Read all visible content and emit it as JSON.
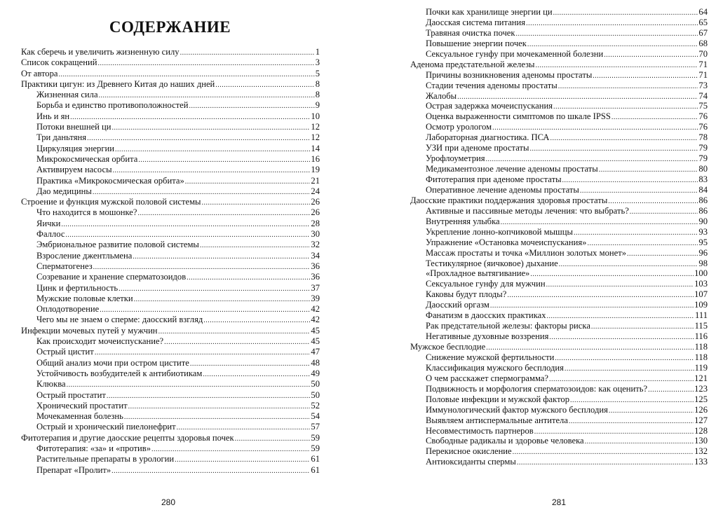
{
  "left_page": {
    "title": "СОДЕРЖАНИЕ",
    "page_number": "280",
    "entries": [
      {
        "level": 0,
        "text": "Как сберечь и увеличить жизненную силу",
        "page": "1"
      },
      {
        "level": 0,
        "text": "Список сокращений",
        "page": "3"
      },
      {
        "level": 0,
        "text": "От автора",
        "page": "5"
      },
      {
        "level": 0,
        "text": "Практики цигун: из Древнего Китая до наших дней",
        "page": "8"
      },
      {
        "level": 1,
        "text": "Жизненная сила",
        "page": "8"
      },
      {
        "level": 1,
        "text": "Борьба и единство противоположностей",
        "page": "9"
      },
      {
        "level": 1,
        "text": "Инь и ян",
        "page": "10"
      },
      {
        "level": 1,
        "text": "Потоки внешней ци",
        "page": "12"
      },
      {
        "level": 1,
        "text": "Три даньтяня",
        "page": "12"
      },
      {
        "level": 1,
        "text": "Циркуляция энергии",
        "page": "14"
      },
      {
        "level": 1,
        "text": "Микрокосмическая  орбита",
        "page": "16"
      },
      {
        "level": 1,
        "text": "Активируем насосы",
        "page": "19"
      },
      {
        "level": 1,
        "text": "Практика «Микрокосмическая орбита»",
        "page": "21"
      },
      {
        "level": 1,
        "text": "Дао медицины",
        "page": "24"
      },
      {
        "level": 0,
        "text": "Строение и функция мужской половой системы",
        "page": "26"
      },
      {
        "level": 1,
        "text": "Что находится в мошонке?",
        "page": "26"
      },
      {
        "level": 1,
        "text": "Яички",
        "page": "28"
      },
      {
        "level": 1,
        "text": "Фаллос",
        "page": "30"
      },
      {
        "level": 1,
        "text": "Эмбриональное развитие половой системы",
        "page": "32"
      },
      {
        "level": 1,
        "text": "Взросление джентльмена",
        "page": "34"
      },
      {
        "level": 1,
        "text": "Сперматогенез",
        "page": "36"
      },
      {
        "level": 1,
        "text": "Созревание и хранение сперматозоидов",
        "page": "36"
      },
      {
        "level": 1,
        "text": "Цинк и фертильность",
        "page": "37"
      },
      {
        "level": 1,
        "text": "Мужские половые клетки",
        "page": "39"
      },
      {
        "level": 1,
        "text": "Оплодотворение",
        "page": "42"
      },
      {
        "level": 1,
        "text": "Чего мы не знаем о сперме:  даосский взгляд",
        "page": "42"
      },
      {
        "level": 0,
        "text": "Инфекции мочевых путей у мужчин",
        "page": "45"
      },
      {
        "level": 1,
        "text": "Как происходит мочеиспускание?",
        "page": "45"
      },
      {
        "level": 1,
        "text": "Острый цистит",
        "page": "47"
      },
      {
        "level": 1,
        "text": "Общий анализ мочи при остром цистите",
        "page": "48"
      },
      {
        "level": 1,
        "text": "Устойчивость возбудителей к антибиотикам",
        "page": "49"
      },
      {
        "level": 1,
        "text": "Клюква",
        "page": "50"
      },
      {
        "level": 1,
        "text": "Острый простатит",
        "page": "50"
      },
      {
        "level": 1,
        "text": "Хронический простатит",
        "page": "52"
      },
      {
        "level": 1,
        "text": "Мочекаменная болезнь",
        "page": "54"
      },
      {
        "level": 1,
        "text": "Острый и хронический  пиелонефрит",
        "page": "57"
      },
      {
        "level": 0,
        "text": "Фитотерапия и другие даосские рецепты здоровья почек",
        "page": "59"
      },
      {
        "level": 1,
        "text": "Фитотерапия: «за» и «против»",
        "page": "59"
      },
      {
        "level": 1,
        "text": "Растительные препараты в урологии",
        "page": "61"
      },
      {
        "level": 1,
        "text": "Препарат «Пролит»",
        "page": "61"
      }
    ]
  },
  "right_page": {
    "page_number": "281",
    "entries": [
      {
        "level": 1,
        "text": "Почки как хранилище  энергии ци",
        "page": "64"
      },
      {
        "level": 1,
        "text": "Даосская система питания",
        "page": "65"
      },
      {
        "level": 1,
        "text": "Травяная очистка почек",
        "page": "67"
      },
      {
        "level": 1,
        "text": "Повышение энергии почек",
        "page": "68"
      },
      {
        "level": 1,
        "text": "Сексуальное гунфу при мочекаменной болезни",
        "page": "70"
      },
      {
        "level": 0,
        "text": "Аденома предстательной железы",
        "page": "71"
      },
      {
        "level": 1,
        "text": "Причины возникновения аденомы простаты",
        "page": "71"
      },
      {
        "level": 1,
        "text": "Стадии течения аденомы простаты",
        "page": "73"
      },
      {
        "level": 1,
        "text": "Жалобы",
        "page": "74"
      },
      {
        "level": 1,
        "text": "Острая задержка  мочеиспускания",
        "page": "75"
      },
      {
        "level": 1,
        "text": "Оценка выраженности симптомов по шкале IPSS",
        "page": "76"
      },
      {
        "level": 1,
        "text": "Осмотр урологом",
        "page": "76"
      },
      {
        "level": 1,
        "text": "Лабораторная диагностика. ПСА",
        "page": "78"
      },
      {
        "level": 1,
        "text": "УЗИ при аденоме простаты",
        "page": "79"
      },
      {
        "level": 1,
        "text": "Урофлоуметрия",
        "page": "79"
      },
      {
        "level": 1,
        "text": "Медикаментозное лечение аденомы простаты",
        "page": "80"
      },
      {
        "level": 1,
        "text": "Фитотерапия  при аденоме простаты",
        "page": "83"
      },
      {
        "level": 1,
        "text": "Оперативное лечение аденомы простаты",
        "page": "84"
      },
      {
        "level": 0,
        "text": "Даосские практики поддержания здоровья простаты",
        "page": "86"
      },
      {
        "level": 1,
        "text": "Активные и пассивные методы лечения: что выбрать?",
        "page": "86"
      },
      {
        "level": 1,
        "text": "Внутренняя улыбка",
        "page": "90"
      },
      {
        "level": 1,
        "text": "Укрепление лонно-копчиковой мышцы",
        "page": "93"
      },
      {
        "level": 1,
        "text": "Упражнение «Остановка мочеиспускания»",
        "page": "95"
      },
      {
        "level": 1,
        "text": "Массаж простаты и точка «Миллион золотых монет»",
        "page": "96"
      },
      {
        "level": 1,
        "text": "Тестикулярное (яичковое) дыхание",
        "page": "98"
      },
      {
        "level": 1,
        "text": " «Прохладное вытягивание»",
        "page": "100"
      },
      {
        "level": 1,
        "text": "Сексуальное гунфу для мужчин",
        "page": "103"
      },
      {
        "level": 1,
        "text": "Каковы будут плоды?",
        "page": "107"
      },
      {
        "level": 1,
        "text": "Даосский оргазм",
        "page": "109"
      },
      {
        "level": 1,
        "text": "Фанатизм в даосских практиках",
        "page": "111"
      },
      {
        "level": 1,
        "text": "Рак предстательной железы:  факторы риска",
        "page": "115"
      },
      {
        "level": 1,
        "text": "Негативные духовные  воззрения",
        "page": "116"
      },
      {
        "level": 0,
        "text": "Мужское бесплодие",
        "page": "118"
      },
      {
        "level": 1,
        "text": "Снижение мужской фертильности",
        "page": "118"
      },
      {
        "level": 1,
        "text": "Классификация мужского бесплодия",
        "page": "119"
      },
      {
        "level": 1,
        "text": "О чем расскажет спермограмма?",
        "page": "121"
      },
      {
        "level": 1,
        "text": "Подвижность и морфология сперматозоидов: как оценить?",
        "page": "123"
      },
      {
        "level": 1,
        "text": "Половые инфекции и мужской фактор",
        "page": "125"
      },
      {
        "level": 1,
        "text": "Иммунологический фактор мужского бесплодия",
        "page": "126"
      },
      {
        "level": 1,
        "text": "Выявляем антиспермальные антитела",
        "page": "127"
      },
      {
        "level": 1,
        "text": "Несовместимость партнеров",
        "page": "128"
      },
      {
        "level": 1,
        "text": "Свободные радикалы и здоровье человека",
        "page": "130"
      },
      {
        "level": 1,
        "text": "Перекисное окисление",
        "page": "132"
      },
      {
        "level": 1,
        "text": "Антиоксиданты спермы",
        "page": "133"
      }
    ]
  }
}
